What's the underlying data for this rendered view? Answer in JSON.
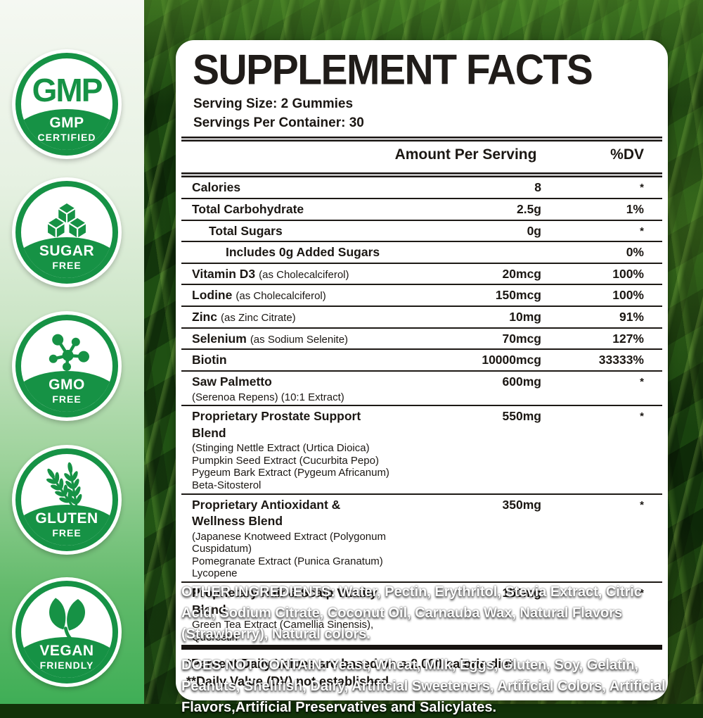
{
  "colors": {
    "badge_green": "#169245",
    "strip_green": "#3fae56",
    "panel_text": "#1b1713"
  },
  "badges": [
    {
      "icon": "gmp-text",
      "icon_text": "GMP",
      "line1": "GMP",
      "line2": "CERTIFIED"
    },
    {
      "icon": "sugar-cubes",
      "line1": "SUGAR",
      "line2": "FREE"
    },
    {
      "icon": "molecule",
      "line1": "GMO",
      "line2": "FREE"
    },
    {
      "icon": "wheat",
      "line1": "GLUTEN",
      "line2": "FREE"
    },
    {
      "icon": "leaves",
      "line1": "VEGAN",
      "line2": "FRIENDLY"
    }
  ],
  "panel": {
    "title": "SUPPLEMENT FACTS",
    "serving_size": "Serving Size: 2 Gummies",
    "servings_per_container": "Servings Per Container: 30",
    "col_amount": "Amount Per Serving",
    "col_dv": "%DV",
    "rows": [
      {
        "name": "Calories",
        "detail": "",
        "amount": "8",
        "dv": "*",
        "indent": 0
      },
      {
        "name": "Total Carbohydrate",
        "detail": "",
        "amount": "2.5g",
        "dv": "1%",
        "indent": 0
      },
      {
        "name": "Total Sugars",
        "detail": "",
        "amount": "0g",
        "dv": "*",
        "indent": 1
      },
      {
        "name": "Includes 0g Added Sugars",
        "detail": "",
        "amount": "",
        "dv": "0%",
        "indent": 2
      },
      {
        "name": "Vitamin D3",
        "detail": "(as Cholecalciferol)",
        "amount": "20mcg",
        "dv": "100%",
        "indent": 0
      },
      {
        "name": "Lodine",
        "detail": "(as Cholecalciferol)",
        "amount": "150mcg",
        "dv": "100%",
        "indent": 0
      },
      {
        "name": "Zinc",
        "detail": "(as Zinc Citrate)",
        "amount": "10mg",
        "dv": "91%",
        "indent": 0
      },
      {
        "name": "Selenium",
        "detail": "(as Sodium Selenite)",
        "amount": "70mcg",
        "dv": "127%",
        "indent": 0
      },
      {
        "name": "Biotin",
        "detail": "",
        "amount": "10000mcg",
        "dv": "33333%",
        "indent": 0
      },
      {
        "name": "Saw Palmetto",
        "detail": "",
        "sub": [
          "(Serenoa Repens) (10:1 Extract)"
        ],
        "amount": "600mg",
        "dv": "*",
        "indent": 0
      },
      {
        "name": "Proprietary Prostate Support Blend",
        "detail": "",
        "sub": [
          "(Stinging Nettle Extract (Urtica Dioica)",
          "Pumpkin Seed Extract (Cucurbita Pepo)",
          "Pygeum Bark Extract (Pygeum Africanum)",
          "Beta-Sitosterol"
        ],
        "amount": "550mg",
        "dv": "*",
        "indent": 0
      },
      {
        "name": "Proprietary Antioxidant & Wellness Blend",
        "detail": "",
        "sub": [
          "(Japanese Knotweed Extract (Polygonum Cuspidatum)",
          "Pomegranate Extract (Punica Granatum)",
          "Lycopene"
        ],
        "amount": "350mg",
        "dv": "*",
        "indent": 0
      },
      {
        "name": "Proprietary Hair & Scalp Vitality Blend",
        "detail": "",
        "sub": [
          "Green Tea Extract (Camellia Sinensis), Quercetin"
        ],
        "amount": "150mg",
        "dv": "*",
        "indent": 0
      }
    ],
    "footnotes": [
      "*Percent Daily Values are based on a 2,000 calorie diet.",
      "**Daily Value (DV) not established."
    ]
  },
  "bottom": {
    "other_ingredients_label": "OTHER INGREDIENTS:",
    "other_ingredients_text": " Water, Pectin, Erythritol, Stevia Extract, Citric Acid, Sodium Citrate, Coconut Oil, Carnauba Wax, Natural Flavors (Strawberry), Natural colors.",
    "does_not_contain_label": "DOES NOT CONTAIN:",
    "does_not_contain_text": " Yeast, Wheat, Milk, Eggs, Gluten, Soy, Gelatin, Peanuts, Shellfish, Dairy, Artificial Sweeteners, Artificial Colors, Artificial Flavors,Artificial Preservatives and Salicylates."
  }
}
